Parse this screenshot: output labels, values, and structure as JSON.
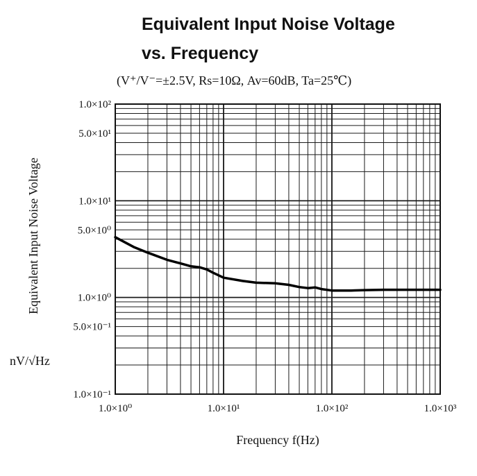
{
  "chart_data": {
    "type": "line",
    "title": "Equivalent Input Noise Voltage",
    "title_line2": "vs. Frequency",
    "subtitle": "(V⁺/V⁻=±2.5V, Rs=10Ω, Av=60dB, Ta=25℃)",
    "xlabel": "Frequency f(Hz)",
    "ylabel": "Equivalent Input Noise Voltage",
    "yunit": "nV/√Hz",
    "xscale": "log",
    "yscale": "log",
    "xlim": [
      1,
      1000
    ],
    "ylim": [
      0.1,
      100
    ],
    "grid": true,
    "x_tick_labels": [
      "1.0×10⁰",
      "1.0×10¹",
      "1.0×10²",
      "1.0×10³"
    ],
    "y_tick_labels": [
      {
        "value": 100,
        "label": "1.0×10²"
      },
      {
        "value": 50,
        "label": "5.0×10¹"
      },
      {
        "value": 10,
        "label": "1.0×10¹"
      },
      {
        "value": 5,
        "label": "5.0×10⁰"
      },
      {
        "value": 1,
        "label": "1.0×10⁰"
      },
      {
        "value": 0.5,
        "label": "5.0×10⁻¹"
      },
      {
        "value": 0.1,
        "label": "1.0×10⁻¹"
      }
    ],
    "series": [
      {
        "x": [
          1,
          1.5,
          2,
          3,
          4,
          5,
          6,
          7,
          8,
          10,
          15,
          20,
          30,
          40,
          50,
          60,
          70,
          80,
          100,
          150,
          200,
          300,
          500,
          1000
        ],
        "y": [
          4.2,
          3.3,
          2.9,
          2.45,
          2.25,
          2.1,
          2.05,
          1.95,
          1.8,
          1.6,
          1.48,
          1.42,
          1.4,
          1.35,
          1.28,
          1.25,
          1.27,
          1.22,
          1.18,
          1.18,
          1.19,
          1.2,
          1.2,
          1.2
        ]
      }
    ]
  }
}
